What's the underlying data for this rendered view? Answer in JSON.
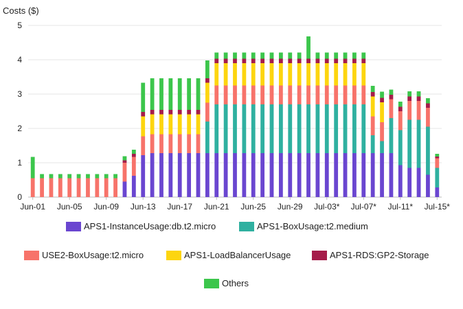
{
  "chart_data": {
    "type": "bar",
    "stacked": true,
    "title": "",
    "ylabel": "Costs ($)",
    "xlabel": "",
    "ylim": [
      0,
      5
    ],
    "y_ticks": [
      "0",
      "1",
      "2",
      "3",
      "4",
      "5"
    ],
    "grid": "horizontal",
    "legend_position": "bottom",
    "categories": [
      "Jun-01",
      "Jun-02",
      "Jun-03",
      "Jun-04",
      "Jun-05",
      "Jun-06",
      "Jun-07",
      "Jun-08",
      "Jun-09",
      "Jun-10",
      "Jun-11",
      "Jun-12",
      "Jun-13",
      "Jun-14",
      "Jun-15",
      "Jun-16",
      "Jun-17",
      "Jun-18",
      "Jun-19",
      "Jun-20",
      "Jun-21",
      "Jun-22",
      "Jun-23",
      "Jun-24",
      "Jun-25",
      "Jun-26",
      "Jun-27",
      "Jun-28",
      "Jun-29",
      "Jun-30",
      "Jul-01*",
      "Jul-02*",
      "Jul-03*",
      "Jul-04*",
      "Jul-05*",
      "Jul-06*",
      "Jul-07*",
      "Jul-08*",
      "Jul-09*",
      "Jul-10*",
      "Jul-11*",
      "Jul-12*",
      "Jul-13*",
      "Jul-14*",
      "Jul-15*"
    ],
    "x_tick_labels": [
      "Jun-01",
      "Jun-05",
      "Jun-09",
      "Jun-13",
      "Jun-17",
      "Jun-21",
      "Jun-25",
      "Jun-29",
      "Jul-03*",
      "Jul-07*",
      "Jul-11*",
      "Jul-15*"
    ],
    "series": [
      {
        "name": "APS1-InstanceUsage:db.t2.micro",
        "color": "#6a46d0",
        "values": [
          0,
          0,
          0,
          0,
          0,
          0,
          0,
          0,
          0,
          0,
          0.45,
          0.62,
          1.22,
          1.28,
          1.28,
          1.28,
          1.28,
          1.28,
          1.28,
          1.28,
          1.28,
          1.28,
          1.28,
          1.28,
          1.28,
          1.28,
          1.28,
          1.28,
          1.28,
          1.28,
          1.28,
          1.28,
          1.28,
          1.28,
          1.28,
          1.28,
          1.28,
          1.28,
          1.28,
          1.28,
          0.93,
          0.85,
          0.85,
          0.65,
          0.28
        ]
      },
      {
        "name": "APS1-BoxUsage:t2.medium",
        "color": "#2fb0a0",
        "values": [
          0,
          0,
          0,
          0,
          0,
          0,
          0,
          0,
          0,
          0,
          0,
          0,
          0,
          0,
          0,
          0,
          0,
          0,
          0,
          0.92,
          1.42,
          1.42,
          1.42,
          1.42,
          1.42,
          1.42,
          1.42,
          1.42,
          1.42,
          1.42,
          1.42,
          1.42,
          1.42,
          1.42,
          1.42,
          1.42,
          1.42,
          0.52,
          0.35,
          1.02,
          1.02,
          1.4,
          1.4,
          1.4,
          0.57
        ]
      },
      {
        "name": "USE2-BoxUsage:t2.micro",
        "color": "#f7736a",
        "values": [
          0.55,
          0.55,
          0.55,
          0.55,
          0.55,
          0.55,
          0.55,
          0.55,
          0.55,
          0.55,
          0.55,
          0.55,
          0.55,
          0.55,
          0.55,
          0.55,
          0.55,
          0.55,
          0.55,
          0.55,
          0.55,
          0.55,
          0.55,
          0.55,
          0.55,
          0.55,
          0.55,
          0.55,
          0.55,
          0.55,
          0.55,
          0.55,
          0.55,
          0.55,
          0.55,
          0.55,
          0.55,
          0.55,
          0.55,
          0.55,
          0.55,
          0.55,
          0.55,
          0.55,
          0.28
        ]
      },
      {
        "name": "APS1-LoadBalancerUsage",
        "color": "#fdd50f",
        "values": [
          0,
          0,
          0,
          0,
          0,
          0,
          0,
          0,
          0,
          0,
          0,
          0,
          0.58,
          0.58,
          0.58,
          0.58,
          0.58,
          0.58,
          0.58,
          0.58,
          0.65,
          0.65,
          0.65,
          0.65,
          0.65,
          0.65,
          0.65,
          0.65,
          0.65,
          0.65,
          0.65,
          0.65,
          0.65,
          0.65,
          0.65,
          0.65,
          0.65,
          0.58,
          0.58,
          0.0,
          0.0,
          0.0,
          0.0,
          0.0,
          0.0
        ]
      },
      {
        "name": "APS1-RDS:GP2-Storage",
        "color": "#a51c4a",
        "values": [
          0,
          0,
          0,
          0,
          0,
          0,
          0,
          0,
          0,
          0,
          0.07,
          0.09,
          0.13,
          0.13,
          0.13,
          0.13,
          0.13,
          0.13,
          0.13,
          0.13,
          0.13,
          0.13,
          0.13,
          0.13,
          0.13,
          0.13,
          0.13,
          0.13,
          0.13,
          0.13,
          0.13,
          0.13,
          0.13,
          0.13,
          0.13,
          0.13,
          0.13,
          0.13,
          0.13,
          0.13,
          0.13,
          0.13,
          0.13,
          0.13,
          0.05
        ]
      },
      {
        "name": "Others",
        "color": "#3cc64c",
        "values": [
          0.62,
          0.12,
          0.12,
          0.12,
          0.12,
          0.12,
          0.12,
          0.12,
          0.12,
          0.12,
          0.12,
          0.12,
          0.85,
          0.92,
          0.92,
          0.92,
          0.92,
          0.92,
          0.92,
          0.52,
          0.18,
          0.18,
          0.18,
          0.18,
          0.18,
          0.18,
          0.18,
          0.18,
          0.18,
          0.18,
          0.65,
          0.18,
          0.18,
          0.18,
          0.18,
          0.18,
          0.18,
          0.18,
          0.18,
          0.15,
          0.15,
          0.15,
          0.15,
          0.15,
          0.08
        ]
      }
    ]
  }
}
